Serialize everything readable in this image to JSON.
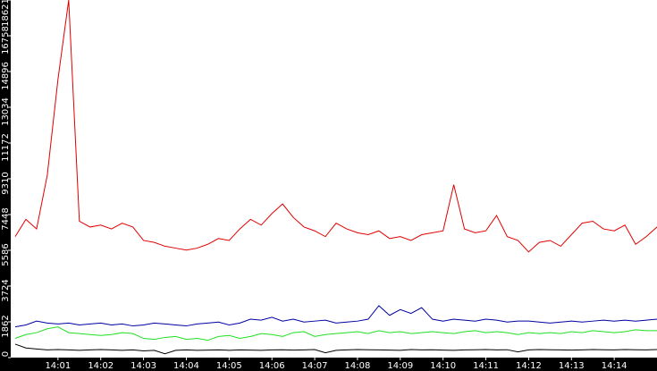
{
  "chart_data": {
    "type": "line",
    "x": [
      0,
      0.25,
      0.5,
      0.75,
      1,
      1.25,
      1.5,
      1.75,
      2,
      2.25,
      2.5,
      2.75,
      3,
      3.25,
      3.5,
      3.75,
      4,
      4.25,
      4.5,
      4.75,
      5,
      5.25,
      5.5,
      5.75,
      6,
      6.25,
      6.5,
      6.75,
      7,
      7.25,
      7.5,
      7.75,
      8,
      8.25,
      8.5,
      8.75,
      9,
      9.25,
      9.5,
      9.75,
      10,
      10.25,
      10.5,
      10.75,
      11,
      11.25,
      11.5,
      11.75,
      12,
      12.25,
      12.5,
      12.75,
      13,
      13.25,
      13.5,
      13.75,
      14,
      14.25,
      14.5,
      14.75,
      15
    ],
    "xlim": [
      0,
      15
    ],
    "xticks": [
      {
        "value": 1,
        "label": "14:01"
      },
      {
        "value": 2,
        "label": "14:02"
      },
      {
        "value": 3,
        "label": "14:03"
      },
      {
        "value": 4,
        "label": "14:04"
      },
      {
        "value": 5,
        "label": "14:05"
      },
      {
        "value": 6,
        "label": "14:06"
      },
      {
        "value": 7,
        "label": "14:07"
      },
      {
        "value": 8,
        "label": "14:08"
      },
      {
        "value": 9,
        "label": "14:09"
      },
      {
        "value": 10,
        "label": "14:10"
      },
      {
        "value": 11,
        "label": "14:11"
      },
      {
        "value": 12,
        "label": "14:12"
      },
      {
        "value": 13,
        "label": "14:13"
      },
      {
        "value": 14,
        "label": "14:14"
      }
    ],
    "ylim": [
      0,
      18621
    ],
    "yticks": [
      0,
      1862,
      3724,
      5586,
      7448,
      9310,
      11172,
      13034,
      14896,
      16758,
      18621
    ],
    "series": [
      {
        "color": "#e00000",
        "values": [
          6300,
          7200,
          6700,
          9500,
          14500,
          18621,
          7100,
          6800,
          6900,
          6700,
          7000,
          6800,
          6100,
          6000,
          5800,
          5700,
          5600,
          5700,
          5900,
          6200,
          6100,
          6700,
          7200,
          6900,
          7500,
          8000,
          7300,
          6800,
          6600,
          6300,
          7000,
          6700,
          6500,
          6400,
          6600,
          6200,
          6300,
          6100,
          6400,
          6500,
          6600,
          9000,
          6700,
          6500,
          6600,
          7400,
          6300,
          6100,
          5500,
          6000,
          6100,
          5800,
          6400,
          7000,
          7100,
          6700,
          6600,
          6900,
          5900,
          6300,
          6800
        ]
      },
      {
        "color": "#0000a0",
        "values": [
          1600,
          1700,
          1900,
          1800,
          1750,
          1800,
          1700,
          1750,
          1800,
          1700,
          1750,
          1650,
          1700,
          1800,
          1750,
          1700,
          1650,
          1750,
          1800,
          1850,
          1700,
          1800,
          2000,
          1950,
          2100,
          1900,
          2000,
          1850,
          1900,
          1950,
          1800,
          1850,
          1900,
          2000,
          2700,
          2200,
          2500,
          2300,
          2600,
          2000,
          1900,
          2000,
          1950,
          1900,
          2000,
          1950,
          1850,
          1900,
          1900,
          1850,
          1800,
          1850,
          1900,
          1850,
          1900,
          1950,
          1900,
          1950,
          1900,
          1950,
          2000
        ]
      },
      {
        "color": "#20e020",
        "values": [
          1000,
          1200,
          1300,
          1500,
          1600,
          1300,
          1250,
          1200,
          1150,
          1200,
          1300,
          1250,
          1000,
          950,
          1050,
          1100,
          950,
          1000,
          900,
          1100,
          1150,
          1000,
          1100,
          1250,
          1200,
          1100,
          1300,
          1350,
          1100,
          1200,
          1250,
          1300,
          1350,
          1250,
          1400,
          1300,
          1350,
          1250,
          1300,
          1350,
          1300,
          1250,
          1350,
          1400,
          1300,
          1350,
          1300,
          1200,
          1300,
          1250,
          1300,
          1250,
          1350,
          1300,
          1400,
          1350,
          1300,
          1350,
          1450,
          1400,
          1400
        ]
      },
      {
        "color": "#000000",
        "values": [
          700,
          500,
          450,
          400,
          420,
          400,
          380,
          400,
          420,
          400,
          380,
          400,
          350,
          380,
          200,
          380,
          400,
          380,
          390,
          400,
          380,
          400,
          390,
          380,
          400,
          410,
          390,
          400,
          420,
          250,
          380,
          400,
          420,
          410,
          400,
          390,
          380,
          420,
          400,
          410,
          390,
          380,
          400,
          410,
          420,
          400,
          410,
          300,
          400,
          420,
          410,
          400,
          390,
          400,
          420,
          410,
          400,
          420,
          410,
          400,
          420
        ]
      }
    ]
  }
}
